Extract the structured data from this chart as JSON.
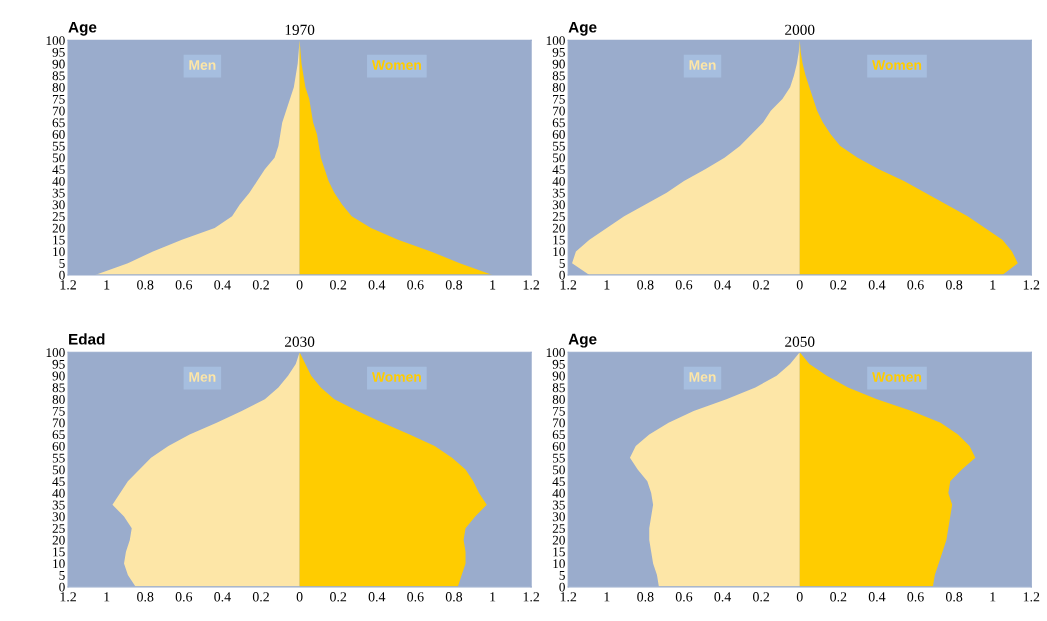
{
  "chart_data": [
    {
      "type": "area",
      "orientation": "horizontal",
      "title": "1970",
      "ylabel": "Age",
      "x": [
        0,
        5,
        10,
        15,
        20,
        25,
        30,
        35,
        40,
        45,
        50,
        55,
        60,
        65,
        70,
        75,
        80,
        85,
        90,
        95,
        100
      ],
      "series": [
        {
          "name": "Men",
          "color": "#fde6a7",
          "values": [
            -1.06,
            -0.89,
            -0.76,
            -0.61,
            -0.44,
            -0.35,
            -0.31,
            -0.26,
            -0.22,
            -0.18,
            -0.13,
            -0.11,
            -0.1,
            -0.09,
            -0.07,
            -0.05,
            -0.03,
            -0.02,
            -0.01,
            -0.005,
            0
          ]
        },
        {
          "name": "Women",
          "color": "#ffcc00",
          "values": [
            1.0,
            0.83,
            0.68,
            0.51,
            0.37,
            0.27,
            0.22,
            0.18,
            0.15,
            0.13,
            0.11,
            0.1,
            0.09,
            0.07,
            0.06,
            0.05,
            0.03,
            0.02,
            0.01,
            0.005,
            0
          ]
        }
      ],
      "xlim": [
        -1.2,
        1.2
      ],
      "xticks": [
        {
          "value": -1.2,
          "label": "1.2"
        },
        {
          "value": -1,
          "label": "1"
        },
        {
          "value": -0.8,
          "label": "0.8"
        },
        {
          "value": -0.6,
          "label": "0.6"
        },
        {
          "value": -0.4,
          "label": "0.4"
        },
        {
          "value": -0.2,
          "label": "0.2"
        },
        0,
        0.2,
        0.4,
        0.6,
        0.8,
        1,
        1.2
      ],
      "ylim": [
        0,
        100
      ],
      "yticks": [
        0,
        5,
        10,
        15,
        20,
        25,
        30,
        35,
        40,
        45,
        50,
        55,
        60,
        65,
        70,
        75,
        80,
        85,
        90,
        95,
        100
      ],
      "grid": false,
      "legend": false
    },
    {
      "type": "area",
      "orientation": "horizontal",
      "title": "2000",
      "ylabel": "Age",
      "x": [
        0,
        5,
        10,
        15,
        20,
        25,
        30,
        35,
        40,
        45,
        50,
        55,
        60,
        65,
        70,
        75,
        80,
        85,
        90,
        95,
        100
      ],
      "series": [
        {
          "name": "Men",
          "color": "#fde6a7",
          "values": [
            -1.09,
            -1.18,
            -1.16,
            -1.09,
            -1.0,
            -0.91,
            -0.8,
            -0.69,
            -0.6,
            -0.49,
            -0.39,
            -0.31,
            -0.25,
            -0.19,
            -0.15,
            -0.09,
            -0.05,
            -0.03,
            -0.015,
            -0.005,
            0
          ]
        },
        {
          "name": "Women",
          "color": "#ffcc00",
          "values": [
            1.05,
            1.13,
            1.1,
            1.05,
            0.96,
            0.87,
            0.76,
            0.65,
            0.54,
            0.41,
            0.3,
            0.21,
            0.16,
            0.12,
            0.09,
            0.07,
            0.05,
            0.03,
            0.015,
            0.005,
            0
          ]
        }
      ],
      "xlim": [
        -1.2,
        1.2
      ],
      "xticks": [
        {
          "value": -1.2,
          "label": "1.2"
        },
        {
          "value": -1,
          "label": "1"
        },
        {
          "value": -0.8,
          "label": "0.8"
        },
        {
          "value": -0.6,
          "label": "0.6"
        },
        {
          "value": -0.4,
          "label": "0.4"
        },
        {
          "value": -0.2,
          "label": "0.2"
        },
        0,
        0.2,
        0.4,
        0.6,
        0.8,
        1,
        1.2
      ],
      "ylim": [
        0,
        100
      ],
      "yticks": [
        0,
        5,
        10,
        15,
        20,
        25,
        30,
        35,
        40,
        45,
        50,
        55,
        60,
        65,
        70,
        75,
        80,
        85,
        90,
        95,
        100
      ],
      "grid": false,
      "legend": false
    },
    {
      "type": "area",
      "orientation": "horizontal",
      "title": "2030",
      "ylabel": "Edad",
      "x": [
        0,
        5,
        10,
        15,
        20,
        25,
        30,
        35,
        40,
        45,
        50,
        55,
        60,
        65,
        70,
        75,
        80,
        85,
        90,
        95,
        100
      ],
      "series": [
        {
          "name": "Men",
          "color": "#fde6a7",
          "values": [
            -0.85,
            -0.89,
            -0.91,
            -0.9,
            -0.88,
            -0.87,
            -0.91,
            -0.97,
            -0.93,
            -0.89,
            -0.83,
            -0.77,
            -0.68,
            -0.57,
            -0.43,
            -0.3,
            -0.18,
            -0.11,
            -0.06,
            -0.02,
            0
          ]
        },
        {
          "name": "Women",
          "color": "#ffcc00",
          "values": [
            0.82,
            0.84,
            0.86,
            0.86,
            0.85,
            0.86,
            0.91,
            0.97,
            0.93,
            0.9,
            0.86,
            0.79,
            0.7,
            0.57,
            0.43,
            0.3,
            0.18,
            0.11,
            0.06,
            0.03,
            0
          ]
        }
      ],
      "xlim": [
        -1.2,
        1.2
      ],
      "xticks": [
        {
          "value": -1.2,
          "label": "1.2"
        },
        {
          "value": -1,
          "label": "1"
        },
        {
          "value": -0.8,
          "label": "0.8"
        },
        {
          "value": -0.6,
          "label": "0.6"
        },
        {
          "value": -0.4,
          "label": "0.4"
        },
        {
          "value": -0.2,
          "label": "0.2"
        },
        0,
        0.2,
        0.4,
        0.6,
        0.8,
        1,
        1.2
      ],
      "ylim": [
        0,
        100
      ],
      "yticks": [
        0,
        5,
        10,
        15,
        20,
        25,
        30,
        35,
        40,
        45,
        50,
        55,
        60,
        65,
        70,
        75,
        80,
        85,
        90,
        95,
        100
      ],
      "grid": false,
      "legend": false
    },
    {
      "type": "area",
      "orientation": "horizontal",
      "title": "2050",
      "ylabel": "Age",
      "x": [
        0,
        5,
        10,
        15,
        20,
        25,
        30,
        35,
        40,
        45,
        50,
        55,
        60,
        65,
        70,
        75,
        80,
        85,
        90,
        95,
        100
      ],
      "series": [
        {
          "name": "Men",
          "color": "#fde6a7",
          "values": [
            -0.73,
            -0.74,
            -0.76,
            -0.77,
            -0.78,
            -0.78,
            -0.77,
            -0.76,
            -0.77,
            -0.79,
            -0.84,
            -0.88,
            -0.85,
            -0.78,
            -0.68,
            -0.55,
            -0.38,
            -0.23,
            -0.12,
            -0.05,
            0
          ]
        },
        {
          "name": "Women",
          "color": "#ffcc00",
          "values": [
            0.69,
            0.7,
            0.72,
            0.74,
            0.76,
            0.77,
            0.78,
            0.79,
            0.77,
            0.78,
            0.84,
            0.91,
            0.88,
            0.82,
            0.73,
            0.58,
            0.4,
            0.25,
            0.14,
            0.05,
            0
          ]
        }
      ],
      "xlim": [
        -1.2,
        1.2
      ],
      "xticks": [
        {
          "value": -1.2,
          "label": "1.2"
        },
        {
          "value": -1,
          "label": "1"
        },
        {
          "value": -0.8,
          "label": "0.8"
        },
        {
          "value": -0.6,
          "label": "0.6"
        },
        {
          "value": -0.4,
          "label": "0.4"
        },
        {
          "value": -0.2,
          "label": "0.2"
        },
        0,
        0.2,
        0.4,
        0.6,
        0.8,
        1,
        1.2
      ],
      "ylim": [
        0,
        100
      ],
      "yticks": [
        0,
        5,
        10,
        15,
        20,
        25,
        30,
        35,
        40,
        45,
        50,
        55,
        60,
        65,
        70,
        75,
        80,
        85,
        90,
        95,
        100
      ],
      "grid": false,
      "legend": false
    }
  ]
}
